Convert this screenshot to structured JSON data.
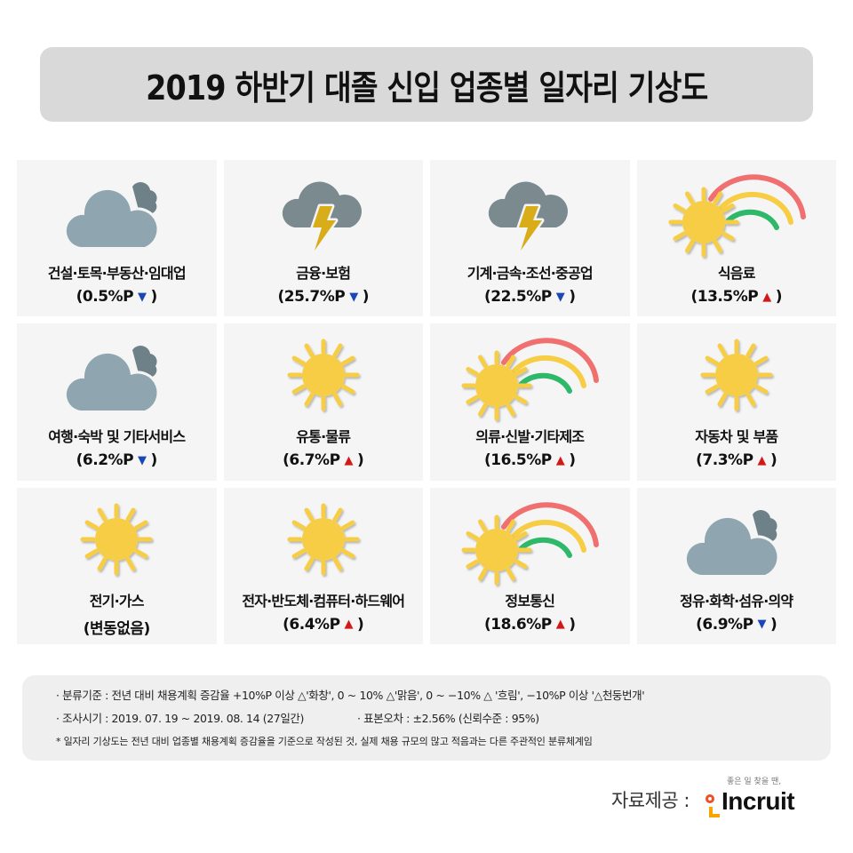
{
  "title": "2019 하반기 대졸 신입 업종별 일자리 기상도",
  "weather_types": {
    "sunny_rainbow": "화창",
    "sunny": "맑음",
    "cloudy": "흐림",
    "thunderstorm": "천둥번개"
  },
  "colors": {
    "up_arrow": "#d01a1a",
    "down_arrow": "#1a47b8",
    "sun": "#f6cd45",
    "cloud_light": "#8fa6b0",
    "cloud_dark": "#6f8188",
    "storm_cloud": "#7a8a8f",
    "lightning": "#d9ad1a",
    "rainbow_red": "#f07070",
    "rainbow_yellow": "#f6cd45",
    "rainbow_green": "#2db86a"
  },
  "industries": [
    {
      "name": "건설·토목·부동산·임대업",
      "weather": "cloudy",
      "value": "(0.5%P",
      "direction": "down",
      "arrow": "▼",
      "close": ")"
    },
    {
      "name": "금융·보험",
      "weather": "thunderstorm",
      "value": "(25.7%P",
      "direction": "down",
      "arrow": "▼",
      "close": ")"
    },
    {
      "name": "기계·금속·조선·중공업",
      "weather": "thunderstorm",
      "value": "(22.5%P",
      "direction": "down",
      "arrow": "▼",
      "close": ")"
    },
    {
      "name": "식음료",
      "weather": "sunny_rainbow",
      "value": "(13.5%P",
      "direction": "up",
      "arrow": "▲",
      "close": ")"
    },
    {
      "name": "여행·숙박 및 기타서비스",
      "weather": "cloudy",
      "value": "(6.2%P",
      "direction": "down",
      "arrow": "▼",
      "close": ")"
    },
    {
      "name": "유통·물류",
      "weather": "sunny",
      "value": "(6.7%P",
      "direction": "up",
      "arrow": "▲",
      "close": ")"
    },
    {
      "name": "의류·신발·기타제조",
      "weather": "sunny_rainbow",
      "value": "(16.5%P",
      "direction": "up",
      "arrow": "▲",
      "close": ")"
    },
    {
      "name": "자동차 및 부품",
      "weather": "sunny",
      "value": "(7.3%P",
      "direction": "up",
      "arrow": "▲",
      "close": ")"
    },
    {
      "name": "전기·가스",
      "weather": "sunny",
      "value": "(변동없음)",
      "direction": "none",
      "arrow": "",
      "close": ""
    },
    {
      "name": "전자·반도체·컴퓨터·하드웨어",
      "weather": "sunny",
      "value": "(6.4%P",
      "direction": "up",
      "arrow": "▲",
      "close": ")"
    },
    {
      "name": "정보통신",
      "weather": "sunny_rainbow",
      "value": "(18.6%P",
      "direction": "up",
      "arrow": "▲",
      "close": ")"
    },
    {
      "name": "정유·화학·섬유·의약",
      "weather": "cloudy",
      "value": "(6.9%P",
      "direction": "down",
      "arrow": "▼",
      "close": ")"
    }
  ],
  "notes": {
    "criteria": "· 분류기준 : 전년 대비 채용계획 증감율 +10%P 이상 △'화창', 0 ~ 10% △'맑음', 0 ~ −10% △ '흐림', −10%P 이상 '△천둥번개'",
    "period": "· 조사시기 : 2019. 07. 19 ~ 2019. 08. 14 (27일간)",
    "error": "· 표본오차 : ±2.56% (신뢰수준 : 95%)",
    "disclaimer": "* 일자리 기상도는 전년 대비 업종별 채용계획 증감율을 기준으로 작성된 것, 실제 채용 규모의 많고 적음과는 다른 주관적인 분류체계임"
  },
  "source": {
    "label": "자료제공 :",
    "logo_tagline": "좋은 일 찾을 땐,",
    "logo_text": "Incruit"
  }
}
